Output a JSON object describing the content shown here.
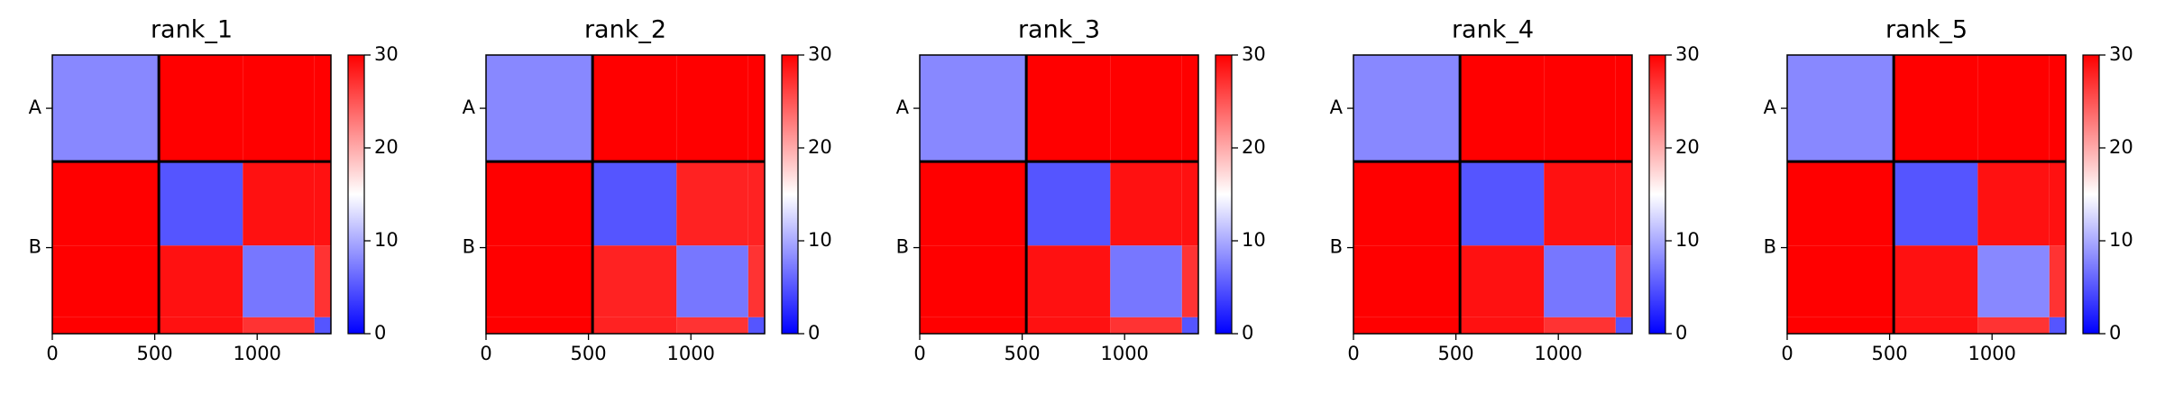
{
  "chart_data": [
    {
      "type": "heatmap",
      "title": "rank_1",
      "edges": [
        0,
        520,
        930,
        1280,
        1360
      ],
      "z": [
        [
          8,
          30,
          30,
          30
        ],
        [
          30,
          5,
          29,
          29
        ],
        [
          30,
          29,
          7,
          27
        ],
        [
          30,
          29,
          27,
          5
        ]
      ],
      "xlim": [
        0,
        1360
      ],
      "ylim": [
        1360,
        0
      ],
      "xticks": [
        0,
        500,
        1000
      ],
      "yticks": [
        {
          "value": 260,
          "label": "A"
        },
        {
          "value": 940,
          "label": "B"
        }
      ],
      "clim": [
        0,
        30
      ],
      "cticks": [
        0,
        10,
        20,
        30
      ],
      "colormap": "bwr",
      "boundaries": [
        520
      ]
    },
    {
      "type": "heatmap",
      "title": "rank_2",
      "edges": [
        0,
        520,
        930,
        1280,
        1360
      ],
      "z": [
        [
          8,
          30,
          30,
          30
        ],
        [
          30,
          5,
          28,
          28
        ],
        [
          30,
          28,
          7,
          27
        ],
        [
          30,
          28,
          27,
          5
        ]
      ],
      "xlim": [
        0,
        1360
      ],
      "ylim": [
        1360,
        0
      ],
      "xticks": [
        0,
        500,
        1000
      ],
      "yticks": [
        {
          "value": 260,
          "label": "A"
        },
        {
          "value": 940,
          "label": "B"
        }
      ],
      "clim": [
        0,
        30
      ],
      "cticks": [
        0,
        10,
        20,
        30
      ],
      "colormap": "bwr",
      "boundaries": [
        520
      ]
    },
    {
      "type": "heatmap",
      "title": "rank_3",
      "edges": [
        0,
        520,
        930,
        1280,
        1360
      ],
      "z": [
        [
          8,
          30,
          30,
          30
        ],
        [
          30,
          5,
          29,
          29
        ],
        [
          30,
          29,
          7,
          27
        ],
        [
          30,
          29,
          27,
          5
        ]
      ],
      "xlim": [
        0,
        1360
      ],
      "ylim": [
        1360,
        0
      ],
      "xticks": [
        0,
        500,
        1000
      ],
      "yticks": [
        {
          "value": 260,
          "label": "A"
        },
        {
          "value": 940,
          "label": "B"
        }
      ],
      "clim": [
        0,
        30
      ],
      "cticks": [
        0,
        10,
        20,
        30
      ],
      "colormap": "bwr",
      "boundaries": [
        520
      ]
    },
    {
      "type": "heatmap",
      "title": "rank_4",
      "edges": [
        0,
        520,
        930,
        1280,
        1360
      ],
      "z": [
        [
          8,
          30,
          30,
          30
        ],
        [
          30,
          5,
          29,
          29
        ],
        [
          30,
          29,
          7,
          27
        ],
        [
          30,
          29,
          27,
          5
        ]
      ],
      "xlim": [
        0,
        1360
      ],
      "ylim": [
        1360,
        0
      ],
      "xticks": [
        0,
        500,
        1000
      ],
      "yticks": [
        {
          "value": 260,
          "label": "A"
        },
        {
          "value": 940,
          "label": "B"
        }
      ],
      "clim": [
        0,
        30
      ],
      "cticks": [
        0,
        10,
        20,
        30
      ],
      "colormap": "bwr",
      "boundaries": [
        520
      ]
    },
    {
      "type": "heatmap",
      "title": "rank_5",
      "edges": [
        0,
        520,
        930,
        1280,
        1360
      ],
      "z": [
        [
          8,
          30,
          30,
          30
        ],
        [
          30,
          5,
          29,
          29
        ],
        [
          30,
          29,
          8,
          27
        ],
        [
          30,
          29,
          27,
          5
        ]
      ],
      "xlim": [
        0,
        1360
      ],
      "ylim": [
        1360,
        0
      ],
      "xticks": [
        0,
        500,
        1000
      ],
      "yticks": [
        {
          "value": 260,
          "label": "A"
        },
        {
          "value": 940,
          "label": "B"
        }
      ],
      "clim": [
        0,
        30
      ],
      "cticks": [
        0,
        10,
        20,
        30
      ],
      "colormap": "bwr",
      "boundaries": [
        520
      ]
    }
  ]
}
